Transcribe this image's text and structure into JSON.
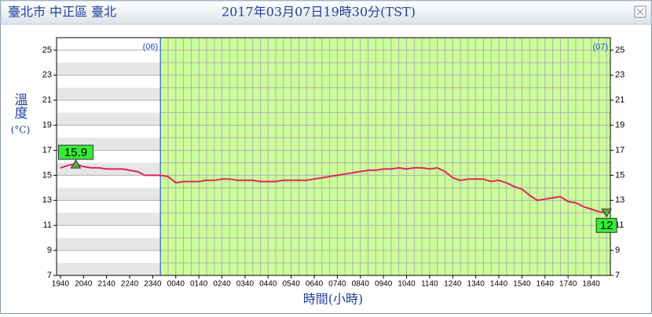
{
  "chart_data": {
    "type": "line",
    "title": "臺北市 中正區 臺北",
    "subtitle": "2017年03月07日19時30分(TST)",
    "y_label": "溫度",
    "y_unit": "(°C)",
    "x_label": "時間(小時)",
    "date_labels": [
      "(06)",
      "(07)"
    ],
    "x": [
      "1940",
      "2000",
      "2020",
      "2040",
      "2100",
      "2120",
      "2140",
      "2200",
      "2220",
      "2240",
      "2300",
      "2320",
      "2340",
      "0000",
      "0020",
      "0040",
      "0100",
      "0120",
      "0140",
      "0200",
      "0220",
      "0240",
      "0300",
      "0320",
      "0340",
      "0400",
      "0420",
      "0440",
      "0500",
      "0520",
      "0540",
      "0600",
      "0620",
      "0640",
      "0700",
      "0720",
      "0740",
      "0800",
      "0820",
      "0840",
      "0900",
      "0920",
      "0940",
      "1000",
      "1020",
      "1040",
      "1100",
      "1120",
      "1140",
      "1200",
      "1220",
      "1240",
      "1300",
      "1320",
      "1340",
      "1400",
      "1420",
      "1440",
      "1500",
      "1520",
      "1540",
      "1600",
      "1620",
      "1640",
      "1700",
      "1720",
      "1740",
      "1800",
      "1820",
      "1840",
      "1900",
      "1920"
    ],
    "series": [
      {
        "name": "溫度",
        "color": "#e0245e",
        "values": [
          15.6,
          15.8,
          15.9,
          15.7,
          15.6,
          15.6,
          15.5,
          15.5,
          15.5,
          15.4,
          15.3,
          15.0,
          15.0,
          15.0,
          14.9,
          14.4,
          14.5,
          14.5,
          14.5,
          14.6,
          14.6,
          14.7,
          14.7,
          14.6,
          14.6,
          14.6,
          14.5,
          14.5,
          14.5,
          14.6,
          14.6,
          14.6,
          14.6,
          14.7,
          14.8,
          14.9,
          15.0,
          15.1,
          15.2,
          15.3,
          15.4,
          15.4,
          15.5,
          15.5,
          15.6,
          15.5,
          15.6,
          15.6,
          15.5,
          15.6,
          15.3,
          14.8,
          14.6,
          14.7,
          14.7,
          14.7,
          14.5,
          14.6,
          14.4,
          14.1,
          13.9,
          13.4,
          13.0,
          13.1,
          13.2,
          13.3,
          12.9,
          12.8,
          12.5,
          12.3,
          12.1,
          12.0
        ]
      }
    ],
    "annotations": [
      {
        "label": "15.9",
        "x": "2020",
        "value": 15.9,
        "kind": "max"
      },
      {
        "label": "12",
        "x": "1920",
        "value": 12,
        "kind": "min"
      }
    ],
    "xticks": [
      "1940",
      "2040",
      "2140",
      "2240",
      "2340",
      "0040",
      "0140",
      "0240",
      "0340",
      "0440",
      "0540",
      "0640",
      "0740",
      "0840",
      "0940",
      "1040",
      "1140",
      "1240",
      "1340",
      "1440",
      "1540",
      "1640",
      "1740",
      "1840"
    ],
    "ylim": [
      7,
      26
    ],
    "yticks": [
      7,
      9,
      11,
      13,
      15,
      17,
      19,
      21,
      23,
      25
    ],
    "grid": true,
    "colors": {
      "before": "#ffffff",
      "band": "#e6e6e6",
      "after": "#ccff99",
      "divider": "#1f50c8",
      "marker": "#33ee33"
    }
  }
}
